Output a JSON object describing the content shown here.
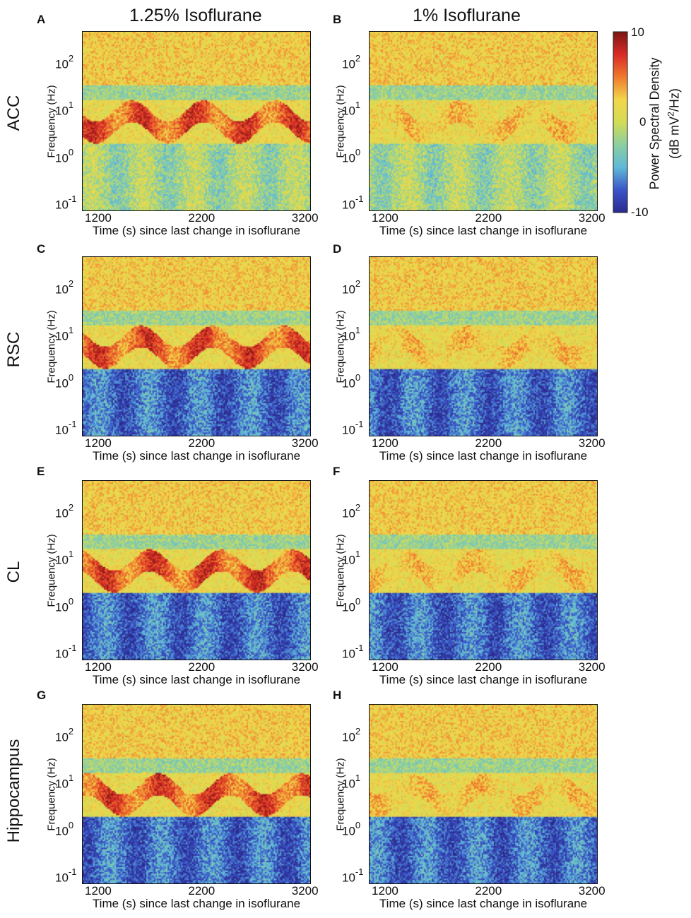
{
  "columns": [
    "1.25% Isoflurane",
    "1% Isoflurane"
  ],
  "rows": [
    "ACC",
    "RSC",
    "CL",
    "Hippocampus"
  ],
  "colorbar": {
    "title_line1": "Power Spectral Density",
    "title_line2_pre": "(dB mV",
    "title_line2_sup": "2",
    "title_line2_post": "/Hz)",
    "ticks": [
      "10",
      "0",
      "-10"
    ],
    "range": [
      -10,
      10
    ],
    "colors": [
      "#2b2a8e",
      "#3a55c8",
      "#5fb9d8",
      "#8ccfa0",
      "#d3dc55",
      "#f2d64a",
      "#ef7a2d",
      "#d82a26",
      "#7a1712"
    ]
  },
  "y_label": "Frequency (Hz)",
  "y_ticks": [
    {
      "base": "10",
      "exp": "2"
    },
    {
      "base": "10",
      "exp": "1"
    },
    {
      "base": "10",
      "exp": "0"
    },
    {
      "base": "10",
      "exp": "-1"
    }
  ],
  "chart_data": [
    {
      "panel": "A",
      "type": "heatmap",
      "region": "ACC",
      "condition": "1.25% Isoflurane",
      "xlabel": "Time (s) since last change in isoflurane",
      "ylabel": "Frequency (Hz)",
      "x_ticks": [
        "1200",
        "2200",
        "3200"
      ],
      "xlim": [
        1050,
        3250
      ],
      "ylim_log10": [
        -1.25,
        2.55
      ],
      "clim": [
        -10,
        10
      ],
      "profile": "strong"
    },
    {
      "panel": "B",
      "type": "heatmap",
      "region": "ACC",
      "condition": "1% Isoflurane",
      "xlabel": "Time (s) since last change in isoflurane",
      "ylabel": "Frequency (Hz)",
      "x_ticks": [
        "1200",
        "2200",
        "3200"
      ],
      "xlim": [
        1050,
        3250
      ],
      "ylim_log10": [
        -1.25,
        2.55
      ],
      "clim": [
        -10,
        10
      ],
      "profile": "weak"
    },
    {
      "panel": "C",
      "type": "heatmap",
      "region": "RSC",
      "condition": "1.25% Isoflurane",
      "xlabel": "Time (s) since last change in isoflurane",
      "ylabel": "Frequency (Hz)",
      "x_ticks": [
        "1200",
        "2200",
        "3200"
      ],
      "xlim": [
        1050,
        3250
      ],
      "ylim_log10": [
        -1.25,
        2.55
      ],
      "clim": [
        -10,
        10
      ],
      "profile": "strong-dark"
    },
    {
      "panel": "D",
      "type": "heatmap",
      "region": "RSC",
      "condition": "1% Isoflurane",
      "xlabel": "Time (s) since last change in isoflurane",
      "ylabel": "Frequency (Hz)",
      "x_ticks": [
        "1200",
        "2200",
        "3200"
      ],
      "xlim": [
        1050,
        3250
      ],
      "ylim_log10": [
        -1.25,
        2.55
      ],
      "clim": [
        -10,
        10
      ],
      "profile": "weak-dark"
    },
    {
      "panel": "E",
      "type": "heatmap",
      "region": "CL",
      "condition": "1.25% Isoflurane",
      "xlabel": "Time (s) since last change in isoflurane",
      "ylabel": "Frequency (Hz)",
      "x_ticks": [
        "1200",
        "2200",
        "3200"
      ],
      "xlim": [
        1050,
        3250
      ],
      "ylim_log10": [
        -1.25,
        2.55
      ],
      "clim": [
        -10,
        10
      ],
      "profile": "strong-dark"
    },
    {
      "panel": "F",
      "type": "heatmap",
      "region": "CL",
      "condition": "1% Isoflurane",
      "xlabel": "Time (s) since last change in isoflurane",
      "ylabel": "Frequency (Hz)",
      "x_ticks": [
        "1200",
        "2200",
        "3200"
      ],
      "xlim": [
        1050,
        3250
      ],
      "ylim_log10": [
        -1.25,
        2.55
      ],
      "clim": [
        -10,
        10
      ],
      "profile": "weak-dark"
    },
    {
      "panel": "G",
      "type": "heatmap",
      "region": "Hippocampus",
      "condition": "1.25% Isoflurane",
      "xlabel": "Time (s) since last change in isoflurane",
      "ylabel": "Frequency (Hz)",
      "x_ticks": [
        "1200",
        "2200",
        "3200"
      ],
      "xlim": [
        1050,
        3250
      ],
      "ylim_log10": [
        -1.25,
        2.55
      ],
      "clim": [
        -10,
        10
      ],
      "profile": "strong-dark"
    },
    {
      "panel": "H",
      "type": "heatmap",
      "region": "Hippocampus",
      "condition": "1% Isoflurane",
      "xlabel": "Time (s) since last change in isoflurane",
      "ylabel": "Frequency (Hz)",
      "x_ticks": [
        "1200",
        "2200",
        "3200"
      ],
      "xlim": [
        1050,
        3250
      ],
      "ylim_log10": [
        -1.25,
        2.55
      ],
      "clim": [
        -10,
        10
      ],
      "profile": "weak-dark"
    }
  ]
}
